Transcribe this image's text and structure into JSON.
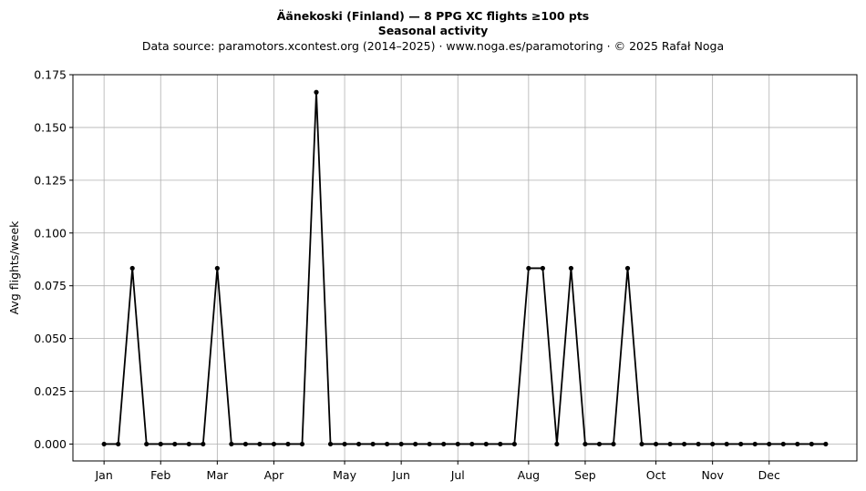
{
  "header": {
    "title": "Äänekoski (Finland)  —  8 PPG XC flights ≥100 pts",
    "subtitle": "Seasonal activity",
    "source": "Data source: paramotors.xcontest.org (2014–2025)  ·  www.noga.es/paramotoring  ·  © 2025 Rafał Noga"
  },
  "chart_data": {
    "type": "line",
    "title": "Äänekoski (Finland)  —  8 PPG XC flights ≥100 pts",
    "subtitle": "Seasonal activity",
    "xlabel": "",
    "ylabel": "Avg flights/week",
    "x": [
      1,
      2,
      3,
      4,
      5,
      6,
      7,
      8,
      9,
      10,
      11,
      12,
      13,
      14,
      15,
      16,
      17,
      18,
      19,
      20,
      21,
      22,
      23,
      24,
      25,
      26,
      27,
      28,
      29,
      30,
      31,
      32,
      33,
      34,
      35,
      36,
      37,
      38,
      39,
      40,
      41,
      42,
      43,
      44,
      45,
      46,
      47,
      48,
      49,
      50,
      51,
      52
    ],
    "values": [
      0,
      0,
      0.0833,
      0,
      0,
      0,
      0,
      0,
      0.0833,
      0,
      0,
      0,
      0,
      0,
      0,
      0.1667,
      0,
      0,
      0,
      0,
      0,
      0,
      0,
      0,
      0,
      0,
      0,
      0,
      0,
      0,
      0.0833,
      0.0833,
      0,
      0.0833,
      0,
      0,
      0,
      0.0833,
      0,
      0,
      0,
      0,
      0,
      0,
      0,
      0,
      0,
      0,
      0,
      0,
      0,
      0
    ],
    "month_ticks": {
      "labels": [
        "Jan",
        "Feb",
        "Mar",
        "Apr",
        "May",
        "Jun",
        "Jul",
        "Aug",
        "Sep",
        "Oct",
        "Nov",
        "Dec"
      ],
      "positions": [
        1,
        5,
        9,
        13,
        18,
        22,
        26,
        31,
        35,
        40,
        44,
        48
      ]
    },
    "ylim": [
      -0.008,
      0.175
    ],
    "yticks": [
      0,
      0.025,
      0.05,
      0.075,
      0.1,
      0.125,
      0.15,
      0.175
    ],
    "ytick_labels": [
      "0.000",
      "0.025",
      "0.050",
      "0.075",
      "0.100",
      "0.125",
      "0.150",
      "0.175"
    ],
    "grid": true,
    "line_color": "#000000",
    "grid_color": "#b0b0b0"
  }
}
